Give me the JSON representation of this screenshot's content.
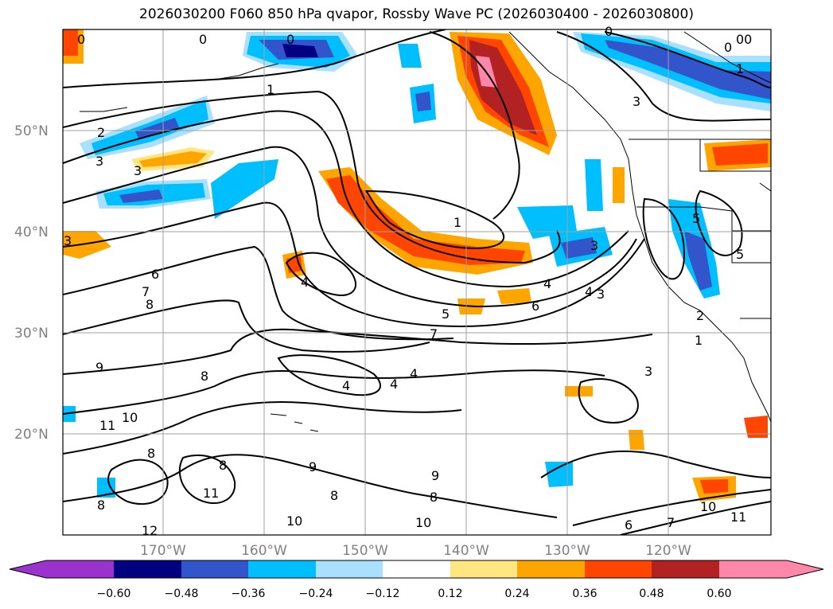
{
  "title": "2026030200 F060 850 hPa qvapor, Rossby Wave PC (2026030400 - 2026030800)",
  "lat_labels": [
    "50°N",
    "40°N",
    "30°N",
    "20°N"
  ],
  "lon_labels": [
    "170°W",
    "160°W",
    "150°W",
    "140°W",
    "130°W",
    "120°W"
  ],
  "colorbar": {
    "ticks": [
      "−0.60",
      "−0.48",
      "−0.36",
      "−0.24",
      "−0.12",
      "0.12",
      "0.24",
      "0.36",
      "0.48",
      "0.60"
    ],
    "colors": [
      "#9933cc",
      "#000080",
      "#3355cc",
      "#00bfff",
      "#aae0ff",
      "#ffffff",
      "#ffe680",
      "#ffa500",
      "#ff4500",
      "#b22222",
      "#ff88aa",
      "#ff88aa"
    ]
  },
  "contour_labels": [
    "0",
    "0",
    "0",
    "0",
    "0",
    "00",
    "1",
    "1",
    "1",
    "1",
    "2",
    "2",
    "3",
    "3",
    "3",
    "3",
    "3",
    "3",
    "3",
    "4",
    "4",
    "4",
    "4",
    "4",
    "4",
    "5",
    "5",
    "5",
    "6",
    "6",
    "6",
    "7",
    "7",
    "7",
    "8",
    "8",
    "8",
    "8",
    "8",
    "8",
    "8",
    "9",
    "9",
    "9",
    "10",
    "10",
    "10",
    "10",
    "11",
    "11",
    "11",
    "12"
  ],
  "colors": {
    "land_border": "#000000",
    "grid": "#999999",
    "contour": "#000000"
  }
}
